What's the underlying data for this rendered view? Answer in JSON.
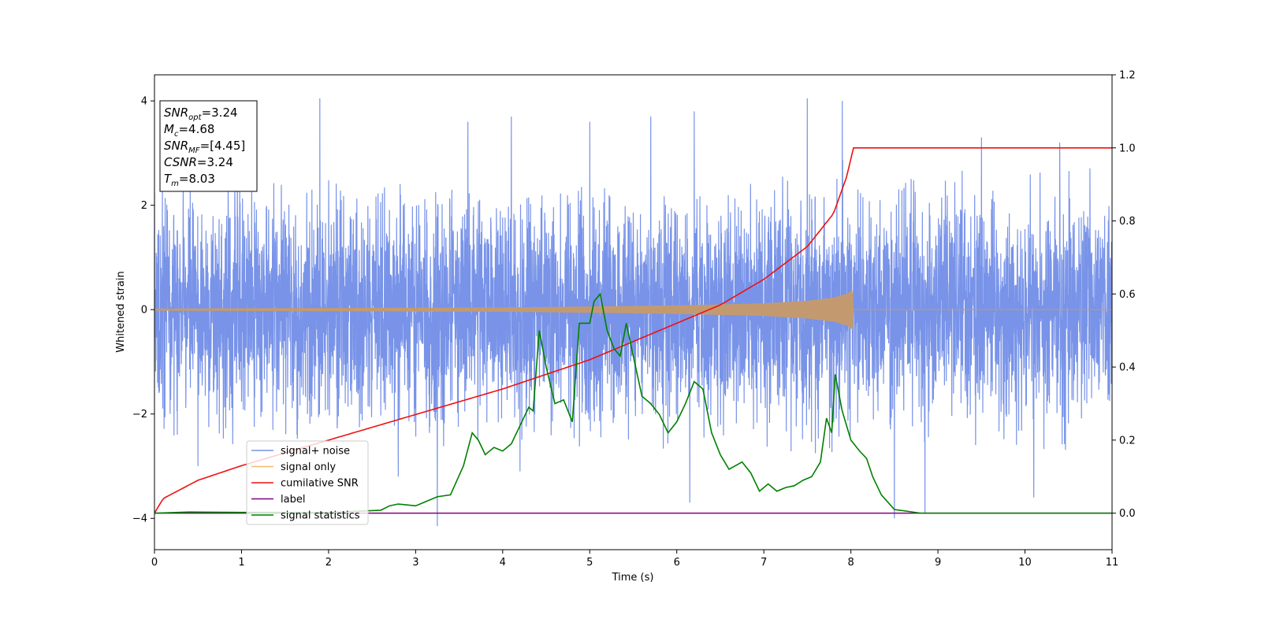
{
  "chart_data": {
    "type": "line",
    "xlabel": "Time (s)",
    "ylabel": "Whitened strain",
    "xlim": [
      0,
      11
    ],
    "ylim": [
      -4.6,
      4.5
    ],
    "y2lim": [
      -0.1,
      1.2
    ],
    "x_ticks": [
      "0",
      "1",
      "2",
      "3",
      "4",
      "5",
      "6",
      "7",
      "8",
      "9",
      "10",
      "11"
    ],
    "y_ticks": [
      "−4",
      "−2",
      "0",
      "2",
      "4"
    ],
    "y2_ticks": [
      "0.0",
      "0.2",
      "0.4",
      "0.6",
      "0.8",
      "1.0",
      "1.2"
    ],
    "grid": false,
    "legend_position": "lower-left",
    "annotation": {
      "lines": [
        {
          "base": "SNR",
          "sub": "opt",
          "value": "=3.24"
        },
        {
          "base": "M",
          "sub": "c",
          "value": "=4.68"
        },
        {
          "base": "SNR",
          "sub": "MF",
          "value": "=[4.45]"
        },
        {
          "base": "CSNR",
          "sub": "",
          "value": "=3.24"
        },
        {
          "base": "T",
          "sub": "m",
          "value": "=8.03"
        }
      ]
    },
    "series": [
      {
        "name": "signal+ noise",
        "color": "#7893e8",
        "axis": "left",
        "kind": "noise",
        "sigma": 1.0,
        "envelope_upper": [
          [
            0,
            2.4
          ],
          [
            0.5,
            2.9
          ],
          [
            1,
            2.9
          ],
          [
            1.5,
            2.9
          ],
          [
            2,
            2.7
          ],
          [
            2.5,
            2.6
          ],
          [
            3,
            2.4
          ],
          [
            3.5,
            2.3
          ],
          [
            4,
            2.2
          ],
          [
            4.5,
            2.4
          ],
          [
            5,
            2.6
          ],
          [
            5.5,
            2.3
          ],
          [
            6,
            2.2
          ],
          [
            6.5,
            2.4
          ],
          [
            7,
            2.5
          ],
          [
            7.5,
            2.8
          ],
          [
            8,
            2.9
          ],
          [
            8.5,
            2.6
          ],
          [
            9,
            2.6
          ],
          [
            9.5,
            2.8
          ],
          [
            10,
            2.6
          ],
          [
            10.5,
            2.9
          ],
          [
            11,
            2.6
          ]
        ],
        "envelope_lower": [
          [
            0,
            -2.4
          ],
          [
            0.5,
            -2.5
          ],
          [
            1,
            -2.6
          ],
          [
            1.5,
            -2.6
          ],
          [
            2,
            -2.4
          ],
          [
            2.5,
            -2.4
          ],
          [
            3,
            -2.6
          ],
          [
            3.5,
            -2.7
          ],
          [
            4,
            -2.5
          ],
          [
            4.5,
            -2.6
          ],
          [
            5,
            -2.7
          ],
          [
            5.5,
            -2.7
          ],
          [
            6,
            -2.7
          ],
          [
            6.5,
            -2.6
          ],
          [
            7,
            -2.8
          ],
          [
            7.5,
            -2.8
          ],
          [
            8,
            -2.7
          ],
          [
            8.5,
            -2.6
          ],
          [
            9,
            -2.6
          ],
          [
            9.5,
            -2.7
          ],
          [
            10,
            -2.8
          ],
          [
            10.5,
            -2.7
          ],
          [
            11,
            -2.5
          ]
        ],
        "spikes": [
          [
            1.9,
            4.05
          ],
          [
            3.6,
            3.6
          ],
          [
            4.1,
            3.7
          ],
          [
            5.0,
            3.6
          ],
          [
            5.7,
            3.7
          ],
          [
            6.2,
            3.8
          ],
          [
            7.5,
            4.05
          ],
          [
            7.9,
            4.0
          ],
          [
            9.5,
            3.3
          ],
          [
            10.4,
            3.2
          ],
          [
            3.25,
            -4.15
          ],
          [
            4.2,
            -3.1
          ],
          [
            6.15,
            -3.7
          ],
          [
            8.5,
            -4.0
          ],
          [
            8.85,
            -3.9
          ],
          [
            10.1,
            -3.6
          ],
          [
            0.5,
            -3.0
          ],
          [
            2.8,
            -3.2
          ]
        ]
      },
      {
        "name": "signal only",
        "color": "#f5bb6f",
        "axis": "left",
        "kind": "chirp",
        "envelope": [
          [
            0,
            0.02
          ],
          [
            1,
            0.025
          ],
          [
            2,
            0.03
          ],
          [
            3,
            0.035
          ],
          [
            4,
            0.04
          ],
          [
            5,
            0.06
          ],
          [
            6,
            0.08
          ],
          [
            7,
            0.12
          ],
          [
            7.5,
            0.17
          ],
          [
            7.8,
            0.23
          ],
          [
            7.95,
            0.3
          ],
          [
            8.02,
            0.38
          ],
          [
            8.03,
            0
          ],
          [
            11,
            0
          ]
        ]
      },
      {
        "name": "cumilative SNR",
        "color": "#ee1111",
        "axis": "right",
        "kind": "line",
        "points": [
          [
            0,
            0.0
          ],
          [
            0.1,
            0.04
          ],
          [
            0.5,
            0.09
          ],
          [
            1,
            0.13
          ],
          [
            2,
            0.2
          ],
          [
            3,
            0.27
          ],
          [
            4,
            0.34
          ],
          [
            5,
            0.42
          ],
          [
            6,
            0.52
          ],
          [
            6.5,
            0.57
          ],
          [
            7,
            0.64
          ],
          [
            7.5,
            0.73
          ],
          [
            7.8,
            0.82
          ],
          [
            7.95,
            0.92
          ],
          [
            8.03,
            1.0
          ],
          [
            8.5,
            1.0
          ],
          [
            9,
            1.0
          ],
          [
            10,
            1.0
          ],
          [
            11,
            1.0
          ]
        ]
      },
      {
        "name": "label",
        "color": "#800080",
        "axis": "right",
        "kind": "line",
        "points": [
          [
            0,
            0.0
          ],
          [
            11,
            0.0
          ]
        ]
      },
      {
        "name": "signal statistics",
        "color": "#008000",
        "axis": "right",
        "kind": "line",
        "points": [
          [
            0,
            0.0
          ],
          [
            0.4,
            0.003
          ],
          [
            1,
            0.002
          ],
          [
            2,
            0.002
          ],
          [
            2.6,
            0.008
          ],
          [
            2.7,
            0.02
          ],
          [
            2.8,
            0.025
          ],
          [
            3.0,
            0.02
          ],
          [
            3.1,
            0.03
          ],
          [
            3.25,
            0.045
          ],
          [
            3.4,
            0.05
          ],
          [
            3.55,
            0.13
          ],
          [
            3.65,
            0.22
          ],
          [
            3.72,
            0.2
          ],
          [
            3.8,
            0.16
          ],
          [
            3.9,
            0.18
          ],
          [
            4.0,
            0.17
          ],
          [
            4.1,
            0.19
          ],
          [
            4.2,
            0.24
          ],
          [
            4.3,
            0.29
          ],
          [
            4.35,
            0.28
          ],
          [
            4.42,
            0.5
          ],
          [
            4.5,
            0.4
          ],
          [
            4.6,
            0.3
          ],
          [
            4.7,
            0.31
          ],
          [
            4.8,
            0.25
          ],
          [
            4.88,
            0.52
          ],
          [
            4.95,
            0.52
          ],
          [
            5.0,
            0.52
          ],
          [
            5.05,
            0.58
          ],
          [
            5.12,
            0.6
          ],
          [
            5.2,
            0.5
          ],
          [
            5.28,
            0.45
          ],
          [
            5.35,
            0.43
          ],
          [
            5.42,
            0.52
          ],
          [
            5.5,
            0.43
          ],
          [
            5.6,
            0.32
          ],
          [
            5.7,
            0.3
          ],
          [
            5.8,
            0.27
          ],
          [
            5.9,
            0.22
          ],
          [
            6.0,
            0.25
          ],
          [
            6.1,
            0.3
          ],
          [
            6.2,
            0.36
          ],
          [
            6.3,
            0.34
          ],
          [
            6.4,
            0.22
          ],
          [
            6.5,
            0.16
          ],
          [
            6.6,
            0.12
          ],
          [
            6.75,
            0.14
          ],
          [
            6.85,
            0.11
          ],
          [
            6.95,
            0.06
          ],
          [
            7.05,
            0.08
          ],
          [
            7.15,
            0.06
          ],
          [
            7.25,
            0.07
          ],
          [
            7.35,
            0.075
          ],
          [
            7.45,
            0.09
          ],
          [
            7.55,
            0.1
          ],
          [
            7.65,
            0.14
          ],
          [
            7.72,
            0.26
          ],
          [
            7.78,
            0.22
          ],
          [
            7.82,
            0.38
          ],
          [
            7.9,
            0.28
          ],
          [
            8.0,
            0.2
          ],
          [
            8.1,
            0.17
          ],
          [
            8.18,
            0.15
          ],
          [
            8.25,
            0.1
          ],
          [
            8.35,
            0.05
          ],
          [
            8.5,
            0.01
          ],
          [
            8.8,
            0.0
          ],
          [
            11,
            0.0
          ]
        ]
      }
    ]
  }
}
